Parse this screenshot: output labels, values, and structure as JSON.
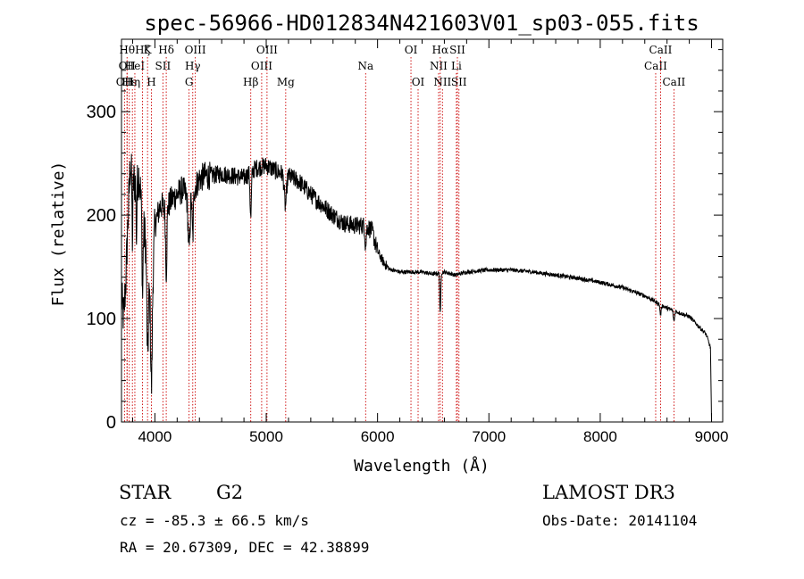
{
  "chart_data": {
    "type": "line",
    "title": "spec-56966-HD012834N421603V01_sp03-055.fits",
    "xlabel": "Wavelength (Å)",
    "ylabel": "Flux (relative)",
    "xlim": [
      3700,
      9100
    ],
    "ylim": [
      0,
      370
    ],
    "xticks": [
      4000,
      5000,
      6000,
      7000,
      8000,
      9000
    ],
    "xtick_labels": [
      "4000",
      "5000",
      "6000",
      "7000",
      "8000",
      "9000"
    ],
    "yticks": [
      0,
      100,
      200,
      300
    ],
    "ytick_labels": [
      "0",
      "100",
      "200",
      "300"
    ],
    "continuum": [
      [
        3700,
        120
      ],
      [
        3720,
        100
      ],
      [
        3740,
        140
      ],
      [
        3760,
        200
      ],
      [
        3780,
        250
      ],
      [
        3800,
        235
      ],
      [
        3830,
        230
      ],
      [
        3860,
        240
      ],
      [
        3890,
        190
      ],
      [
        3920,
        175
      ],
      [
        3950,
        130
      ],
      [
        3970,
        115
      ],
      [
        4000,
        190
      ],
      [
        4050,
        210
      ],
      [
        4100,
        205
      ],
      [
        4150,
        215
      ],
      [
        4200,
        220
      ],
      [
        4250,
        225
      ],
      [
        4300,
        215
      ],
      [
        4350,
        225
      ],
      [
        4400,
        235
      ],
      [
        4450,
        238
      ],
      [
        4500,
        238
      ],
      [
        4600,
        240
      ],
      [
        4700,
        238
      ],
      [
        4800,
        236
      ],
      [
        4900,
        245
      ],
      [
        5000,
        248
      ],
      [
        5100,
        242
      ],
      [
        5200,
        238
      ],
      [
        5300,
        232
      ],
      [
        5400,
        220
      ],
      [
        5500,
        210
      ],
      [
        5600,
        200
      ],
      [
        5700,
        192
      ],
      [
        5800,
        190
      ],
      [
        5900,
        190
      ],
      [
        5950,
        185
      ],
      [
        6000,
        165
      ],
      [
        6050,
        155
      ],
      [
        6100,
        148
      ],
      [
        6200,
        145
      ],
      [
        6300,
        145
      ],
      [
        6400,
        145
      ],
      [
        6500,
        143
      ],
      [
        6600,
        145
      ],
      [
        6700,
        142
      ],
      [
        6800,
        145
      ],
      [
        7000,
        147
      ],
      [
        7200,
        147
      ],
      [
        7400,
        145
      ],
      [
        7600,
        142
      ],
      [
        7800,
        139
      ],
      [
        8000,
        135
      ],
      [
        8200,
        130
      ],
      [
        8400,
        122
      ],
      [
        8600,
        110
      ],
      [
        8800,
        102
      ],
      [
        8950,
        85
      ],
      [
        8990,
        72
      ],
      [
        9000,
        0
      ]
    ],
    "absorption_lines": [
      {
        "wavelength": 3934,
        "depth": 90,
        "width": 10
      },
      {
        "wavelength": 3969,
        "depth": 80,
        "width": 10
      },
      {
        "wavelength": 3889,
        "depth": 70,
        "width": 6
      },
      {
        "wavelength": 3798,
        "depth": 60,
        "width": 5
      },
      {
        "wavelength": 3835,
        "depth": 55,
        "width": 5
      },
      {
        "wavelength": 4102,
        "depth": 60,
        "width": 8
      },
      {
        "wavelength": 4307,
        "depth": 50,
        "width": 12
      },
      {
        "wavelength": 4340,
        "depth": 45,
        "width": 8
      },
      {
        "wavelength": 4861,
        "depth": 45,
        "width": 8
      },
      {
        "wavelength": 5172,
        "depth": 30,
        "width": 14
      },
      {
        "wavelength": 5893,
        "depth": 20,
        "width": 8
      },
      {
        "wavelength": 6563,
        "depth": 40,
        "width": 6
      },
      {
        "wavelength": 8542,
        "depth": 10,
        "width": 8
      },
      {
        "wavelength": 8662,
        "depth": 10,
        "width": 8
      }
    ],
    "line_markers": [
      {
        "wavelength": 3727,
        "label": "OII",
        "row": 2
      },
      {
        "wavelength": 3750,
        "label": "Hθ",
        "row": 0
      },
      {
        "wavelength": 3750,
        "label": "OII",
        "row": 1
      },
      {
        "wavelength": 3770,
        "label": "Hε",
        "row": 2
      },
      {
        "wavelength": 3798,
        "label": "Hη",
        "row": 2
      },
      {
        "wavelength": 3820,
        "label": "HeI",
        "row": 1
      },
      {
        "wavelength": 3889,
        "label": "Hζ",
        "row": 0
      },
      {
        "wavelength": 3934,
        "label": "K",
        "row": 0
      },
      {
        "wavelength": 3969,
        "label": "H",
        "row": 2
      },
      {
        "wavelength": 4072,
        "label": "SII",
        "row": 1
      },
      {
        "wavelength": 4102,
        "label": "Hδ",
        "row": 0
      },
      {
        "wavelength": 4307,
        "label": "G",
        "row": 2
      },
      {
        "wavelength": 4340,
        "label": "Hγ",
        "row": 1
      },
      {
        "wavelength": 4363,
        "label": "OIII",
        "row": 0
      },
      {
        "wavelength": 4861,
        "label": "Hβ",
        "row": 2
      },
      {
        "wavelength": 4959,
        "label": "OIII",
        "row": 1
      },
      {
        "wavelength": 5007,
        "label": "OIII",
        "row": 0
      },
      {
        "wavelength": 5175,
        "label": "Mg",
        "row": 2
      },
      {
        "wavelength": 5893,
        "label": "Na",
        "row": 1
      },
      {
        "wavelength": 6300,
        "label": "OI",
        "row": 0
      },
      {
        "wavelength": 6364,
        "label": "OI",
        "row": 2
      },
      {
        "wavelength": 6548,
        "label": "NII",
        "row": 1
      },
      {
        "wavelength": 6563,
        "label": "Hα",
        "row": 0
      },
      {
        "wavelength": 6583,
        "label": "NII",
        "row": 2
      },
      {
        "wavelength": 6708,
        "label": "Li",
        "row": 1
      },
      {
        "wavelength": 6717,
        "label": "SII",
        "row": 0
      },
      {
        "wavelength": 6731,
        "label": "SII",
        "row": 2
      },
      {
        "wavelength": 8498,
        "label": "CaII",
        "row": 1
      },
      {
        "wavelength": 8542,
        "label": "CaII",
        "row": 0
      },
      {
        "wavelength": 8662,
        "label": "CaII",
        "row": 2
      }
    ],
    "line_color": "#000000",
    "marker_color": "#cc0000"
  },
  "info": {
    "object_class": "STAR",
    "subclass": "G2",
    "survey": "LAMOST DR3",
    "redshift_text": "cz = -85.3 ± 66.5 km/s",
    "obs_date_text": "Obs-Date: 20141104",
    "coords_text": "RA =  20.67309, DEC =  42.38899"
  }
}
